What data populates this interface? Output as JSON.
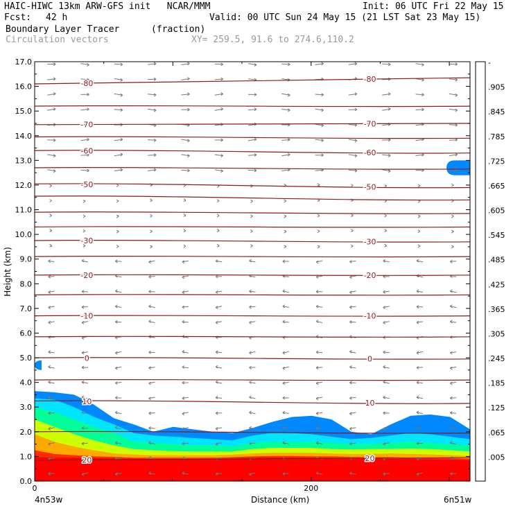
{
  "header": {
    "title_line1": "HAIC-HIWC 13km ARW-GFS init   NCAR/MMM",
    "init": "Init: 06 UTC Fri 22 May 15",
    "fcst_label": "Fcst:",
    "fcst_value": "42 h",
    "valid": "Valid: 00 UTC Sun 24 May 15 (21 LST Sat 23 May 15)",
    "field_name": "Boundary Layer Tracer",
    "field_units": "(fraction)",
    "overlay_name": "Circulation vectors",
    "xy_range": "XY= 259.5, 91.6 to 274.6,110.2"
  },
  "colors": {
    "contour": "#8b1a1a",
    "vector": "#777777"
  },
  "chart_data": {
    "type": "heatmap",
    "xlabel": "Distance (km)",
    "ylabel": "Height (km)",
    "xlim": [
      0,
      315
    ],
    "ylim": [
      0,
      17
    ],
    "x_ticks": [
      "0",
      "200"
    ],
    "y_ticks": [
      "0.0",
      "1.0",
      "2.0",
      "3.0",
      "4.0",
      "5.0",
      "6.0",
      "7.0",
      "8.0",
      "9.0",
      "10.0",
      "11.0",
      "12.0",
      "13.0",
      "14.0",
      "15.0",
      "16.0",
      "17.0"
    ],
    "x_endpoint_labels": {
      "left": "4n53w",
      "right": "6n51w"
    },
    "colorbar_labels": [
      "-",
      ".905",
      ".845",
      ".785",
      ".725",
      ".665",
      ".605",
      ".545",
      ".485",
      ".425",
      ".365",
      ".305",
      ".245",
      ".185",
      ".125",
      ".065",
      ".005"
    ],
    "colorbar_colors": [
      "#ff0000",
      "#ff2a00",
      "#ff5500",
      "#ff7f00",
      "#ffaa00",
      "#ffd400",
      "#ffff00",
      "#ccff00",
      "#99ff33",
      "#55ff55",
      "#00ff99",
      "#00ffcc",
      "#00e5ff",
      "#00bbff",
      "#0088ff",
      "#0044ff",
      "#ffffff"
    ],
    "temperature_contours": [
      {
        "label": "-80",
        "y": [
          16.1,
          16.35
        ]
      },
      {
        "label": "",
        "y": [
          15.2,
          15.2
        ]
      },
      {
        "label": "-70",
        "y": [
          14.45,
          14.5
        ]
      },
      {
        "label": "",
        "y": [
          13.95,
          13.9
        ]
      },
      {
        "label": "-60",
        "y": [
          13.4,
          13.3
        ]
      },
      {
        "label": "",
        "y": [
          12.7,
          12.65
        ]
      },
      {
        "label": "-50",
        "y": [
          12.05,
          11.9
        ]
      },
      {
        "label": "",
        "y": [
          11.55,
          11.4
        ]
      },
      {
        "label": "",
        "y": [
          10.9,
          10.85
        ]
      },
      {
        "label": "",
        "y": [
          10.3,
          10.3
        ]
      },
      {
        "label": "-30",
        "y": [
          9.75,
          9.7
        ]
      },
      {
        "label": "",
        "y": [
          9.1,
          9.1
        ]
      },
      {
        "label": "-20",
        "y": [
          8.35,
          8.35
        ]
      },
      {
        "label": "",
        "y": [
          7.55,
          7.55
        ]
      },
      {
        "label": "-10",
        "y": [
          6.7,
          6.7
        ]
      },
      {
        "label": "",
        "y": [
          5.85,
          5.85
        ]
      },
      {
        "label": "0",
        "y": [
          5.0,
          4.95
        ]
      },
      {
        "label": "",
        "y": [
          4.1,
          4.1
        ]
      },
      {
        "label": "10",
        "y": [
          3.25,
          3.15
        ]
      },
      {
        "label": "",
        "y": [
          2.0,
          1.95
        ]
      },
      {
        "label": "20",
        "y": [
          0.85,
          0.95
        ]
      }
    ],
    "tracer_layers": [
      {
        "fraction": 0.065,
        "top_km": [
          3.65,
          3.6,
          3.5,
          3.1,
          2.55,
          2.3,
          2.0,
          2.2,
          2.1,
          2.0,
          1.95,
          2.15,
          2.4,
          2.6,
          2.65,
          2.5,
          2.0,
          1.9,
          2.3,
          2.65,
          2.7,
          2.6,
          2.1
        ]
      },
      {
        "fraction": 0.185,
        "top_km": [
          3.35,
          3.3,
          3.0,
          2.6,
          2.3,
          1.95,
          1.85,
          1.8,
          1.75,
          1.7,
          1.65,
          1.85,
          1.95,
          1.95,
          1.9,
          1.8,
          1.7,
          1.75,
          1.85,
          1.95,
          1.9,
          1.8,
          1.7
        ]
      },
      {
        "fraction": 0.305,
        "top_km": [
          3.0,
          2.8,
          2.5,
          2.2,
          1.95,
          1.6,
          1.55,
          1.5,
          1.45,
          1.45,
          1.4,
          1.55,
          1.6,
          1.6,
          1.6,
          1.55,
          1.5,
          1.5,
          1.55,
          1.6,
          1.55,
          1.5,
          1.45
        ]
      },
      {
        "fraction": 0.485,
        "top_km": [
          2.5,
          2.2,
          1.9,
          1.65,
          1.45,
          1.3,
          1.25,
          1.22,
          1.2,
          1.2,
          1.2,
          1.3,
          1.35,
          1.35,
          1.35,
          1.3,
          1.28,
          1.3,
          1.3,
          1.32,
          1.3,
          1.25,
          1.2
        ]
      },
      {
        "fraction": 0.665,
        "top_km": [
          1.9,
          1.6,
          1.4,
          1.25,
          1.12,
          1.08,
          1.05,
          1.05,
          1.05,
          1.05,
          1.08,
          1.12,
          1.15,
          1.15,
          1.15,
          1.12,
          1.1,
          1.1,
          1.12,
          1.1,
          1.08,
          1.05,
          1.02
        ]
      },
      {
        "fraction": 0.845,
        "top_km": [
          1.25,
          1.1,
          1.05,
          1.0,
          0.98,
          0.95,
          0.95,
          0.95,
          0.95,
          0.95,
          0.97,
          1.0,
          1.02,
          1.02,
          1.0,
          1.0,
          0.98,
          0.97,
          0.97,
          0.95,
          0.95,
          0.93,
          0.9
        ]
      },
      {
        "fraction": 0.905,
        "top_km": [
          0.98,
          0.95,
          0.95,
          0.93,
          0.92,
          0.9,
          0.9,
          0.9,
          0.9,
          0.9,
          0.92,
          0.95,
          0.95,
          0.95,
          0.94,
          0.93,
          0.92,
          0.92,
          0.9,
          0.9,
          0.88,
          0.87,
          0.85
        ]
      }
    ],
    "isolated_patches": [
      {
        "fraction": 0.065,
        "x_km": [
          298,
          315
        ],
        "y_km": [
          12.4,
          13.0
        ]
      },
      {
        "fraction": 0.065,
        "x_km": [
          0,
          5
        ],
        "y_km": [
          4.5,
          4.9
        ]
      }
    ],
    "vector_field": {
      "x_columns": 13,
      "y_rows": 28,
      "mean_direction": "upper levels eastward, lower levels westward"
    },
    "grid": false,
    "legend": "right colorbar"
  }
}
